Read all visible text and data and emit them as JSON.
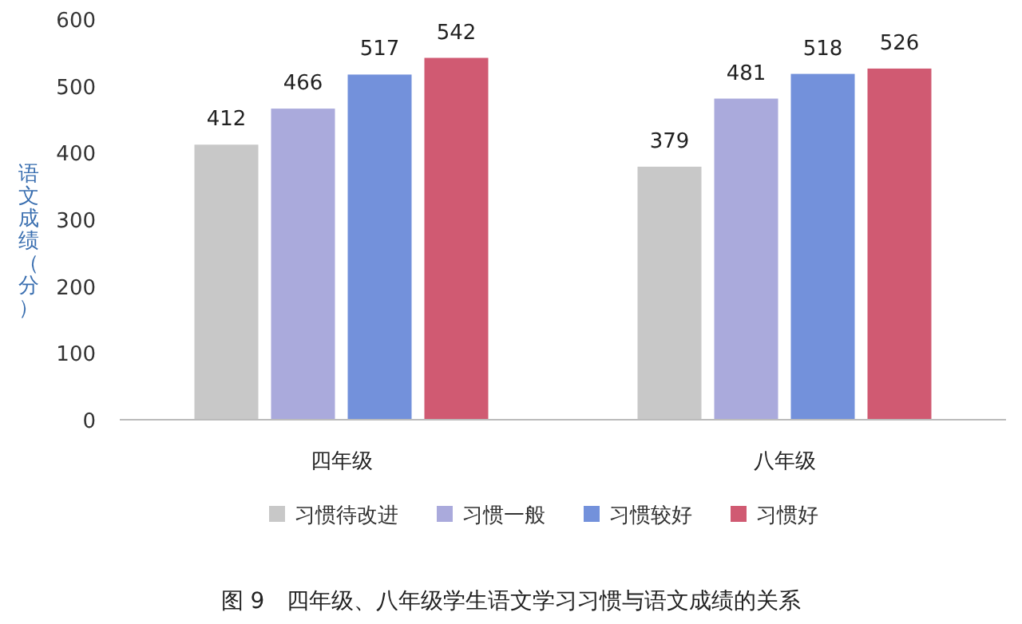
{
  "chart_data": {
    "type": "bar",
    "categories": [
      "四年级",
      "八年级"
    ],
    "series": [
      {
        "name": "习惯待改进",
        "color": "#c8c8c8",
        "values": [
          412,
          379
        ]
      },
      {
        "name": "习惯一般",
        "color": "#aaaadc",
        "values": [
          466,
          481
        ]
      },
      {
        "name": "习惯较好",
        "color": "#7391db",
        "values": [
          517,
          518
        ]
      },
      {
        "name": "习惯好",
        "color": "#d05a72",
        "values": [
          542,
          526
        ]
      }
    ],
    "ylabel": "语文成绩（分）",
    "ylim": [
      0,
      600
    ],
    "yticks": [
      0,
      100,
      200,
      300,
      400,
      500,
      600
    ],
    "data_labels": true,
    "legend": "bottom",
    "annotations": [
      "图 9　四年级、八年级学生语文学习习惯与语文成绩的关系"
    ]
  }
}
